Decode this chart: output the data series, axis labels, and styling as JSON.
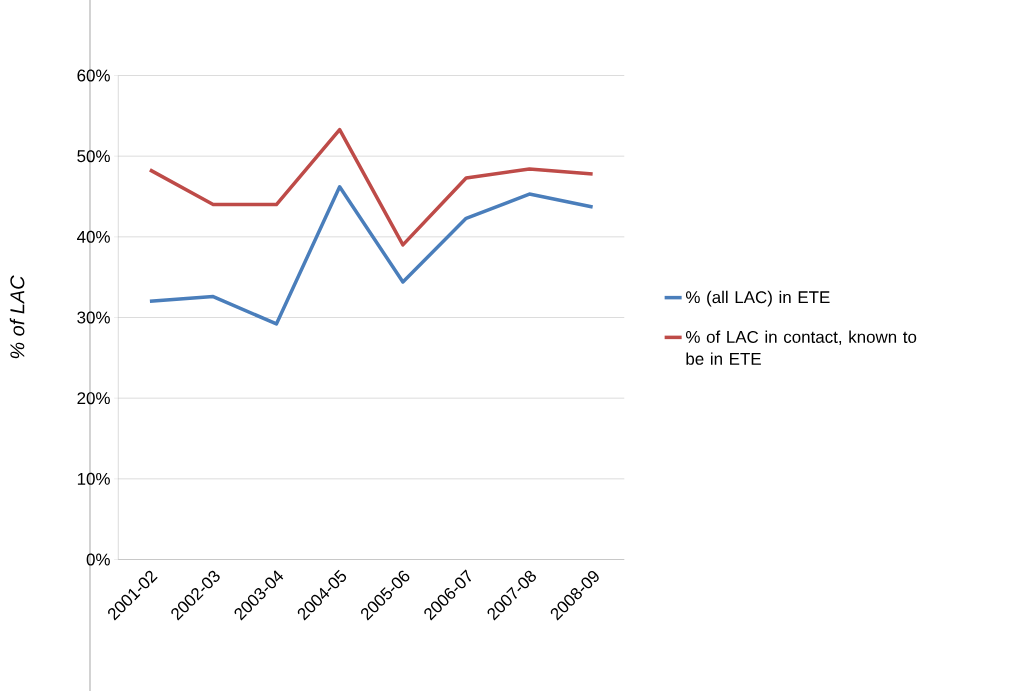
{
  "chart_data": {
    "type": "line",
    "ylabel": "% of LAC",
    "categories": [
      "2001-02",
      "2002-03",
      "2003-04",
      "2004-05",
      "2005-06",
      "2006-07",
      "2007-08",
      "2008-09"
    ],
    "series": [
      {
        "name": "% (all LAC) in ETE",
        "color": "#4a7ebb",
        "values": [
          32.0,
          32.6,
          29.2,
          46.2,
          34.4,
          42.3,
          45.3,
          43.7
        ]
      },
      {
        "name": "% of LAC in contact, known to be in ETE",
        "color": "#be4b48",
        "values": [
          48.3,
          44.0,
          44.0,
          53.3,
          39.0,
          47.3,
          48.4,
          47.8
        ]
      }
    ],
    "ylim": [
      0,
      60
    ],
    "yticks": [
      {
        "value": 0,
        "label": "0%"
      },
      {
        "value": 10,
        "label": "10%"
      },
      {
        "value": 20,
        "label": "20%"
      },
      {
        "value": 30,
        "label": "30%"
      },
      {
        "value": 40,
        "label": "40%"
      },
      {
        "value": 50,
        "label": "50%"
      },
      {
        "value": 60,
        "label": "60%"
      }
    ],
    "grid": "y",
    "legend": "right",
    "marker": "none",
    "line_style": "solid"
  }
}
